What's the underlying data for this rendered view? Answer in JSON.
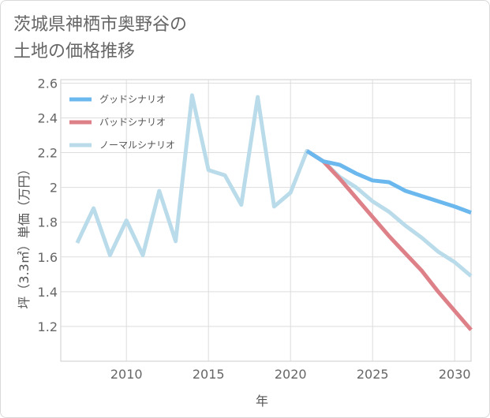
{
  "title_line1": "茨城県神栖市奥野谷の",
  "title_line2": "土地の価格推移",
  "chart_data": {
    "type": "line",
    "xlabel": "年",
    "ylabel": "坪（3.3㎡）単価（万円）",
    "xlim": [
      2006,
      2031
    ],
    "ylim": [
      1.0,
      2.62
    ],
    "xticks": [
      2010,
      2015,
      2020,
      2025,
      2030
    ],
    "yticks": [
      1.2,
      1.4,
      1.6,
      1.8,
      2,
      2.2,
      2.4,
      2.6
    ],
    "yticklabels": [
      "1.2",
      "1.4",
      "1.6",
      "1.8",
      "2",
      "2.2",
      "2.4",
      "2.6"
    ],
    "legend_position": "top-left",
    "series": [
      {
        "name": "グッドシナリオ",
        "color": "#6bb8ee",
        "x": [
          2021,
          2022,
          2023,
          2024,
          2025,
          2026,
          2027,
          2028,
          2029,
          2030,
          2031
        ],
        "y": [
          2.21,
          2.15,
          2.13,
          2.08,
          2.04,
          2.03,
          1.98,
          1.95,
          1.92,
          1.89,
          1.855
        ]
      },
      {
        "name": "バッドシナリオ",
        "color": "#dd8088",
        "x": [
          2021,
          2022,
          2023,
          2024,
          2025,
          2026,
          2027,
          2028,
          2029,
          2030,
          2031
        ],
        "y": [
          2.21,
          2.15,
          2.05,
          1.94,
          1.83,
          1.72,
          1.62,
          1.52,
          1.4,
          1.29,
          1.18
        ]
      },
      {
        "name": "ノーマルシナリオ",
        "color": "#badcea",
        "x": [
          2007,
          2008,
          2009,
          2010,
          2011,
          2012,
          2013,
          2014,
          2015,
          2016,
          2017,
          2018,
          2019,
          2020,
          2021,
          2022,
          2023,
          2024,
          2025,
          2026,
          2027,
          2028,
          2029,
          2030,
          2031
        ],
        "y": [
          1.68,
          1.88,
          1.61,
          1.81,
          1.61,
          1.98,
          1.69,
          2.53,
          2.1,
          2.07,
          1.9,
          2.52,
          1.89,
          1.97,
          2.21,
          2.15,
          2.06,
          2.0,
          1.92,
          1.86,
          1.78,
          1.71,
          1.63,
          1.57,
          1.49
        ]
      }
    ]
  }
}
